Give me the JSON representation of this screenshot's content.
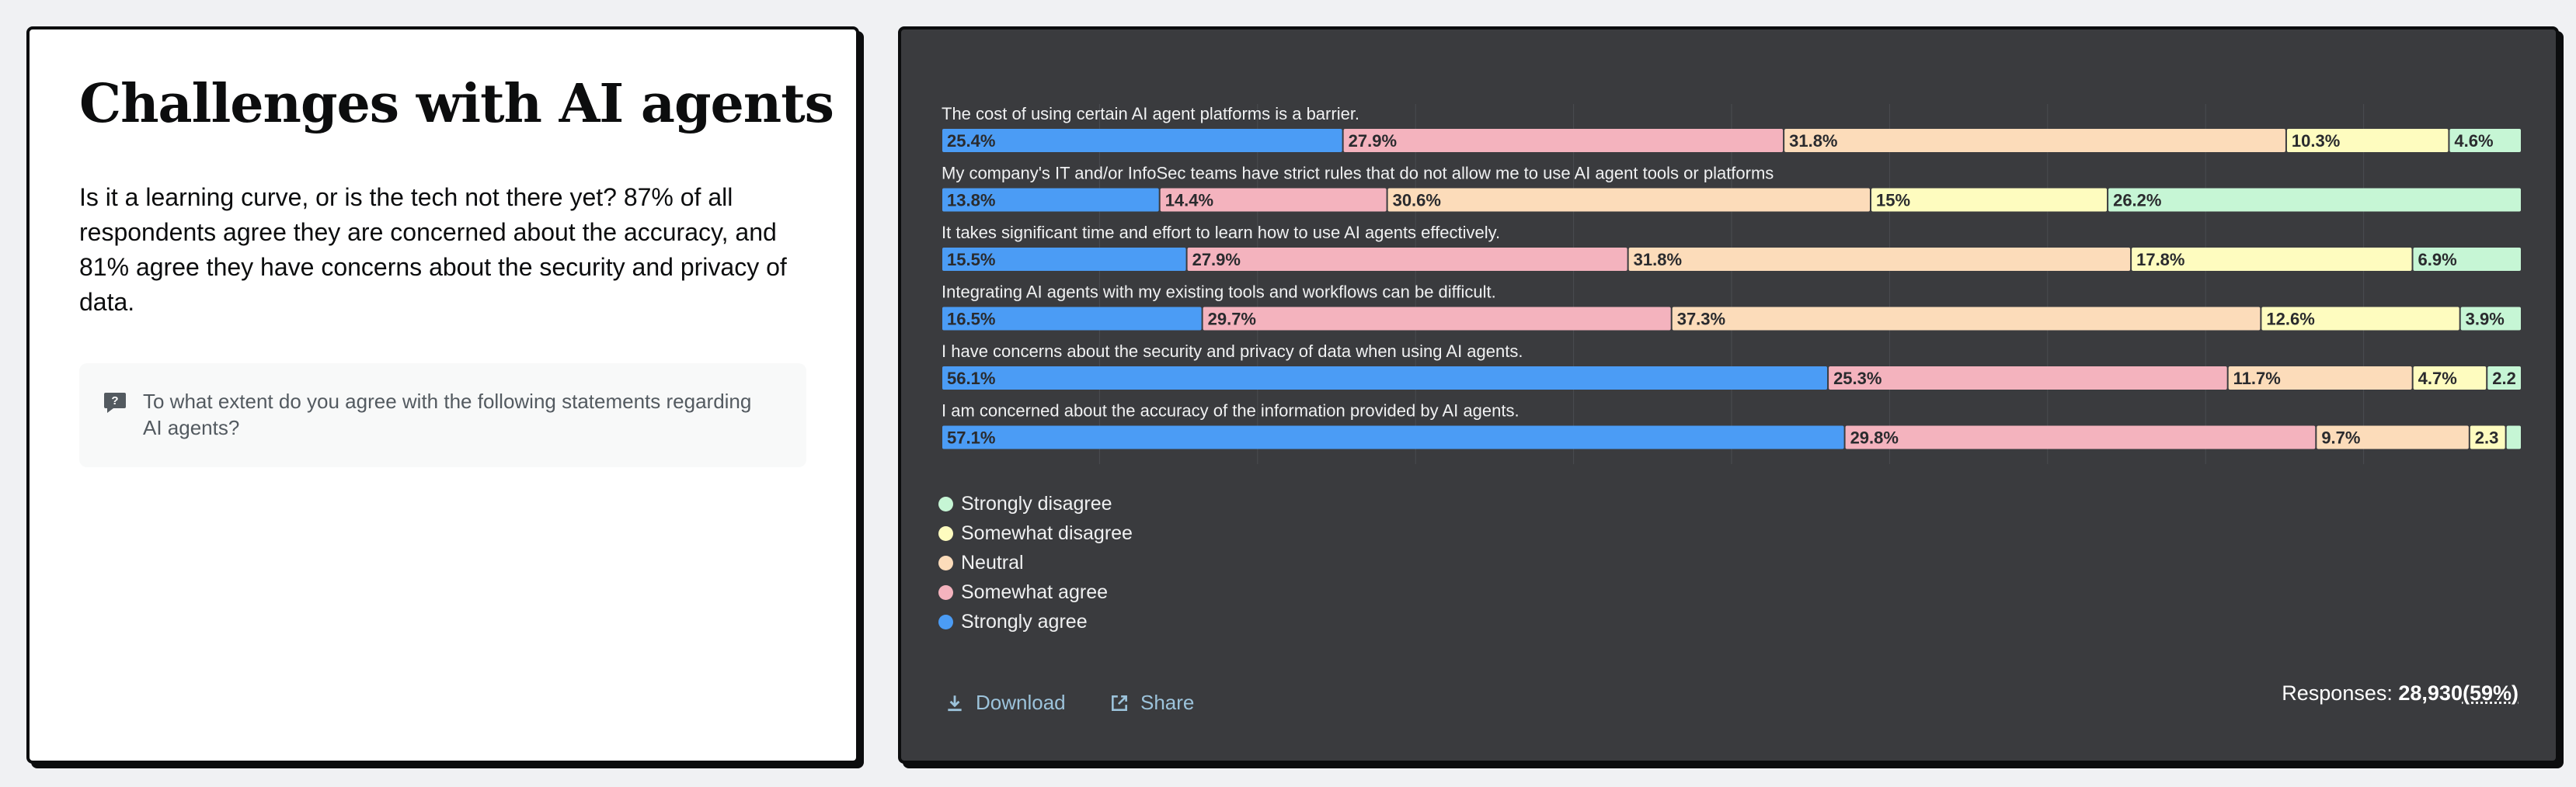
{
  "left": {
    "title": "Challenges with AI agents",
    "intro": "Is it a learning curve, or is the tech not there yet? 87% of all respondents agree they are concerned about the accuracy, and 81% agree they have concerns about the security and privacy of data.",
    "question": "To what extent do you agree with the following statements regarding AI agents?",
    "question_icon": "question-icon"
  },
  "footer": {
    "download_label": "Download",
    "share_label": "Share",
    "responses_label": "Responses: ",
    "responses_count": "28,930",
    "responses_pct": "(59%)"
  },
  "colors": {
    "strongly_agree": "#4b9cf5",
    "somewhat_agree": "#f4b3be",
    "neutral": "#fcdcba",
    "somewhat_disagree": "#fefcbf",
    "strongly_disagree": "#c6f6d5"
  },
  "chart_data": {
    "type": "bar",
    "stacked": true,
    "orientation": "horizontal",
    "categories": [
      "The cost of using certain AI agent platforms is a barrier.",
      "My company's IT and/or InfoSec teams have strict rules that do not allow me to use AI agent tools or platforms",
      "It takes significant time and effort to learn how to use AI agents effectively.",
      "Integrating AI agents with my existing tools and workflows can be difficult.",
      "I have concerns about the security and privacy of data when using AI agents.",
      "I am concerned about the accuracy of the information provided by AI agents."
    ],
    "series": [
      {
        "name": "Strongly agree",
        "color": "#4b9cf5",
        "values": [
          25.4,
          13.8,
          15.5,
          16.5,
          56.1,
          57.1
        ]
      },
      {
        "name": "Somewhat agree",
        "color": "#f4b3be",
        "values": [
          27.9,
          14.4,
          27.9,
          29.7,
          25.3,
          29.8
        ]
      },
      {
        "name": "Neutral",
        "color": "#fcdcba",
        "values": [
          31.8,
          30.6,
          31.8,
          37.3,
          11.7,
          9.7
        ]
      },
      {
        "name": "Somewhat disagree",
        "color": "#fefcbf",
        "values": [
          10.3,
          15,
          17.8,
          12.6,
          4.7,
          2.3
        ]
      },
      {
        "name": "Strongly disagree",
        "color": "#c6f6d5",
        "values": [
          4.6,
          26.2,
          6.9,
          3.9,
          2.2,
          1
        ]
      }
    ],
    "labels": [
      [
        "25.4%",
        "27.9%",
        "31.8%",
        "10.3%",
        "4.6%"
      ],
      [
        "13.8%",
        "14.4%",
        "30.6%",
        "15%",
        "26.2%"
      ],
      [
        "15.5%",
        "27.9%",
        "31.8%",
        "17.8%",
        "6.9%"
      ],
      [
        "16.5%",
        "29.7%",
        "37.3%",
        "12.6%",
        "3.9%"
      ],
      [
        "56.1%",
        "25.3%",
        "11.7%",
        "4.7%",
        "2.2"
      ],
      [
        "57.1%",
        "29.8%",
        "9.7%",
        "2.3",
        ""
      ]
    ],
    "legend_order": [
      "Strongly disagree",
      "Somewhat disagree",
      "Neutral",
      "Somewhat agree",
      "Strongly agree"
    ],
    "legend_position": "bottom-left",
    "grid": true,
    "xlim": [
      0,
      100
    ]
  }
}
